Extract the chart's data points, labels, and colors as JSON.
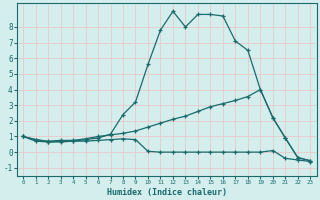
{
  "xlabel": "Humidex (Indice chaleur)",
  "background_color": "#d4eded",
  "grid_color": "#c8dada",
  "line_color": "#1a6b6b",
  "xlim": [
    -0.5,
    23.5
  ],
  "ylim": [
    -1.5,
    9.5
  ],
  "x_ticks": [
    0,
    1,
    2,
    3,
    4,
    5,
    6,
    7,
    8,
    9,
    10,
    11,
    12,
    13,
    14,
    15,
    16,
    17,
    18,
    19,
    20,
    21,
    22,
    23
  ],
  "y_ticks": [
    -1,
    0,
    1,
    2,
    3,
    4,
    5,
    6,
    7,
    8
  ],
  "line1_x": [
    0,
    1,
    2,
    3,
    4,
    5,
    6,
    7,
    8,
    9,
    10,
    11,
    12,
    13,
    14,
    15,
    16,
    17,
    18,
    19,
    20,
    21,
    22,
    23
  ],
  "line1_y": [
    1.0,
    0.7,
    0.65,
    0.65,
    0.7,
    0.7,
    0.75,
    0.8,
    0.85,
    0.8,
    0.05,
    0.0,
    0.0,
    0.0,
    0.0,
    0.0,
    0.0,
    0.0,
    0.0,
    0.0,
    0.1,
    -0.4,
    -0.5,
    -0.6
  ],
  "line2_x": [
    0,
    1,
    2,
    3,
    4,
    5,
    6,
    7,
    8,
    9,
    10,
    11,
    12,
    13,
    14,
    15,
    16,
    17,
    18,
    19,
    20,
    21,
    22,
    23
  ],
  "line2_y": [
    1.0,
    0.8,
    0.7,
    0.75,
    0.75,
    0.85,
    1.0,
    1.1,
    1.2,
    1.35,
    1.6,
    1.85,
    2.1,
    2.3,
    2.6,
    2.9,
    3.1,
    3.3,
    3.55,
    4.0,
    2.2,
    0.9,
    -0.35,
    -0.55
  ],
  "line3_x": [
    0,
    1,
    2,
    3,
    4,
    5,
    6,
    7,
    8,
    9,
    10,
    11,
    12,
    13,
    14,
    15,
    16,
    17,
    18,
    19,
    20,
    21,
    22,
    23
  ],
  "line3_y": [
    1.0,
    0.8,
    0.65,
    0.7,
    0.7,
    0.8,
    0.9,
    1.15,
    2.4,
    3.2,
    5.6,
    7.8,
    9.0,
    8.0,
    8.8,
    8.8,
    8.7,
    7.1,
    6.5,
    4.0,
    2.2,
    0.9,
    -0.35,
    -0.55
  ]
}
